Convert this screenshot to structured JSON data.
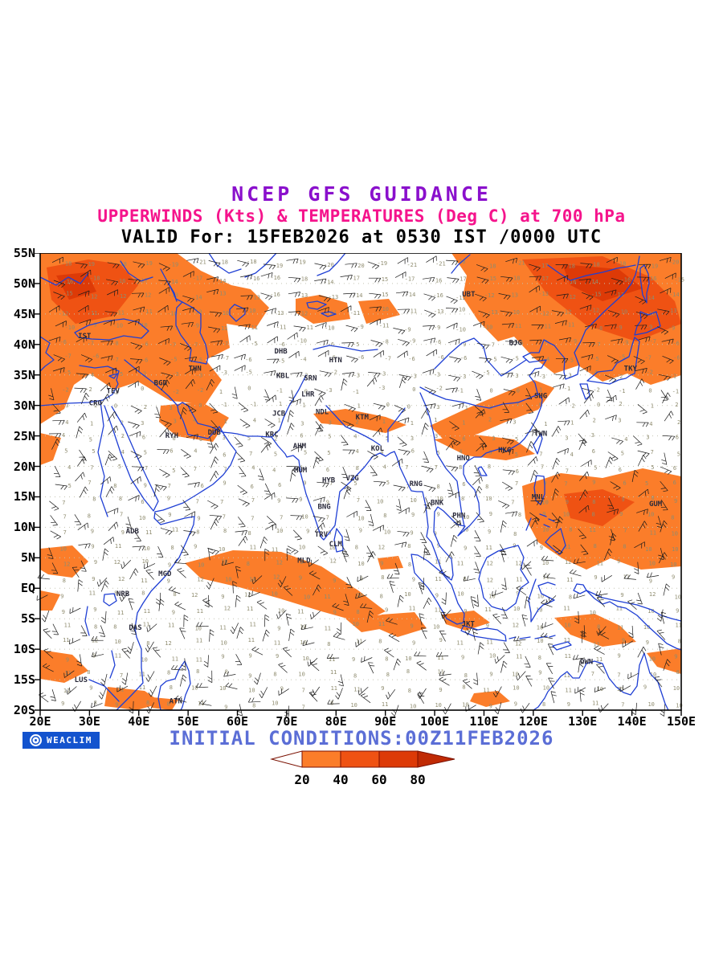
{
  "header": {
    "title1": "NCEP GFS GUIDANCE",
    "title2": "UPPERWINDS (Kts) & TEMPERATURES (Deg C) at 700 hPa",
    "title3": "VALID For: 15FEB2026 at 0530 IST /0000 UTC",
    "title1_color": "#8A10CC",
    "title2_color": "#F5148C",
    "title3_color": "#000000"
  },
  "footer": {
    "brand": "WEACLIM",
    "brand_bg": "#1353CE",
    "initial_conditions": "INITIAL CONDITIONS:00Z11FEB2026",
    "initial_conditions_color": "#5B6ED6"
  },
  "legend": {
    "labels": [
      "20",
      "40",
      "60",
      "80"
    ],
    "segment_colors": [
      "#FFFFFF",
      "#FB7D2A",
      "#EF5213",
      "#DD3A07",
      "#C02A04"
    ],
    "outline_color": "#7A1000",
    "label_color": "#000000"
  },
  "chart_data": {
    "type": "heatmap",
    "subtype": "wind-temperature-map",
    "title": "NCEP GFS GUIDANCE",
    "variable": "Upper winds (Kts) shaded, wind barbs, and temperatures (Deg C)",
    "level": "700 hPa",
    "valid_time": "15FEB2026 at 0530 IST / 0000 UTC",
    "initial_conditions": "00Z11FEB2026",
    "lon_range": [
      20,
      150
    ],
    "lat_range": [
      -20,
      55
    ],
    "x_ticks": [
      {
        "label": "20E",
        "lon": 20
      },
      {
        "label": "30E",
        "lon": 30
      },
      {
        "label": "40E",
        "lon": 40
      },
      {
        "label": "50E",
        "lon": 50
      },
      {
        "label": "60E",
        "lon": 60
      },
      {
        "label": "70E",
        "lon": 70
      },
      {
        "label": "80E",
        "lon": 80
      },
      {
        "label": "90E",
        "lon": 90
      },
      {
        "label": "100E",
        "lon": 100
      },
      {
        "label": "110E",
        "lon": 110
      },
      {
        "label": "120E",
        "lon": 120
      },
      {
        "label": "130E",
        "lon": 130
      },
      {
        "label": "140E",
        "lon": 140
      },
      {
        "label": "150E",
        "lon": 150
      }
    ],
    "y_ticks": [
      {
        "label": "55N",
        "lat": 55
      },
      {
        "label": "50N",
        "lat": 50
      },
      {
        "label": "45N",
        "lat": 45
      },
      {
        "label": "40N",
        "lat": 40
      },
      {
        "label": "35N",
        "lat": 35
      },
      {
        "label": "30N",
        "lat": 30
      },
      {
        "label": "25N",
        "lat": 25
      },
      {
        "label": "20N",
        "lat": 20
      },
      {
        "label": "15N",
        "lat": 15
      },
      {
        "label": "10N",
        "lat": 10
      },
      {
        "label": "5N",
        "lat": 5
      },
      {
        "label": "EQ",
        "lat": 0
      },
      {
        "label": "5S",
        "lat": -5
      },
      {
        "label": "10S",
        "lat": -10
      },
      {
        "label": "15S",
        "lat": -15
      },
      {
        "label": "20S",
        "lat": -20
      }
    ],
    "shade_levels": [
      {
        "min": 20,
        "max": 40,
        "color": "#FB7D2A"
      },
      {
        "min": 40,
        "max": 60,
        "color": "#EF5213"
      },
      {
        "min": 60,
        "max": 80,
        "color": "#DD3A07"
      },
      {
        "min": 80,
        "color": "#C02A04"
      }
    ],
    "temp_profile": [
      [
        55,
        -21
      ],
      [
        50,
        -15
      ],
      [
        45,
        -11
      ],
      [
        40,
        -7
      ],
      [
        35,
        -3
      ],
      [
        30,
        1
      ],
      [
        25,
        4
      ],
      [
        20,
        6
      ],
      [
        15,
        8
      ],
      [
        10,
        9
      ],
      [
        5,
        10
      ],
      [
        0,
        10
      ],
      [
        -5,
        10
      ],
      [
        -10,
        10
      ],
      [
        -15,
        9
      ],
      [
        -20,
        9
      ]
    ],
    "stations": [
      {
        "label": "IST",
        "lon": 29.0,
        "lat": 41.0
      },
      {
        "label": "THN",
        "lon": 51.4,
        "lat": 35.7
      },
      {
        "label": "BGD",
        "lon": 44.4,
        "lat": 33.3
      },
      {
        "label": "TEV",
        "lon": 34.8,
        "lat": 32.0
      },
      {
        "label": "CRO",
        "lon": 31.2,
        "lat": 30.0
      },
      {
        "label": "DHB",
        "lon": 68.8,
        "lat": 38.5
      },
      {
        "label": "HTN",
        "lon": 79.9,
        "lat": 37.1
      },
      {
        "label": "KBL",
        "lon": 69.2,
        "lat": 34.5
      },
      {
        "label": "SRN",
        "lon": 74.8,
        "lat": 34.1
      },
      {
        "label": "LHR",
        "lon": 74.3,
        "lat": 31.5
      },
      {
        "label": "JCB",
        "lon": 68.4,
        "lat": 28.3
      },
      {
        "label": "NDL",
        "lon": 77.2,
        "lat": 28.6
      },
      {
        "label": "KTM",
        "lon": 85.3,
        "lat": 27.7
      },
      {
        "label": "RYH",
        "lon": 46.7,
        "lat": 24.7
      },
      {
        "label": "DUB",
        "lon": 55.3,
        "lat": 25.2
      },
      {
        "label": "KRC",
        "lon": 67.0,
        "lat": 24.9
      },
      {
        "label": "AHM",
        "lon": 72.6,
        "lat": 23.0
      },
      {
        "label": "KOL",
        "lon": 88.4,
        "lat": 22.6
      },
      {
        "label": "MUM",
        "lon": 72.8,
        "lat": 19.0
      },
      {
        "label": "HYB",
        "lon": 78.5,
        "lat": 17.4
      },
      {
        "label": "VZG",
        "lon": 83.3,
        "lat": 17.7
      },
      {
        "label": "RNG",
        "lon": 96.2,
        "lat": 16.8
      },
      {
        "label": "BNK",
        "lon": 100.5,
        "lat": 13.7
      },
      {
        "label": "PHN",
        "lon": 104.9,
        "lat": 11.6
      },
      {
        "label": "BNG",
        "lon": 77.6,
        "lat": 13.0
      },
      {
        "label": "TRV",
        "lon": 77.0,
        "lat": 8.5
      },
      {
        "label": "CLM",
        "lon": 79.9,
        "lat": 6.9
      },
      {
        "label": "MLD",
        "lon": 73.5,
        "lat": 4.2
      },
      {
        "label": "ADB",
        "lon": 38.7,
        "lat": 9.0
      },
      {
        "label": "MGD",
        "lon": 45.3,
        "lat": 2.0
      },
      {
        "label": "NRB",
        "lon": 36.8,
        "lat": -1.3
      },
      {
        "label": "DAS",
        "lon": 39.3,
        "lat": -6.8
      },
      {
        "label": "LUS",
        "lon": 28.3,
        "lat": -15.4
      },
      {
        "label": "ATN",
        "lon": 47.5,
        "lat": -18.9
      },
      {
        "label": "UBT",
        "lon": 106.9,
        "lat": 47.9
      },
      {
        "label": "BJG",
        "lon": 116.4,
        "lat": 39.9
      },
      {
        "label": "TKY",
        "lon": 139.7,
        "lat": 35.7
      },
      {
        "label": "SHG",
        "lon": 121.5,
        "lat": 31.2
      },
      {
        "label": "TWN",
        "lon": 121.5,
        "lat": 25.0
      },
      {
        "label": "HKG",
        "lon": 114.2,
        "lat": 22.3
      },
      {
        "label": "HNO",
        "lon": 105.8,
        "lat": 21.0
      },
      {
        "label": "MNL",
        "lon": 121.0,
        "lat": 14.6
      },
      {
        "label": "GUM",
        "lon": 144.8,
        "lat": 13.5
      },
      {
        "label": "JKT",
        "lon": 106.8,
        "lat": -6.2
      },
      {
        "label": "DWN",
        "lon": 130.8,
        "lat": -12.4
      }
    ],
    "map_colors": {
      "coast": "#1F3FD4",
      "barb": "#1A1A1A",
      "temp_text": "#8F8C6F",
      "grid_dots": "#C4C4B2",
      "station_text": "#2B2B3B",
      "frame": "#000000"
    },
    "shaded_regions_note": "Orange shading (>20kt) over Turkey/Middle East, NE China-Japan, south China, Himalayan belt, west Pacific/Philippines, equatorial Indian Ocean band, east Africa and Timor/Darwin region"
  }
}
